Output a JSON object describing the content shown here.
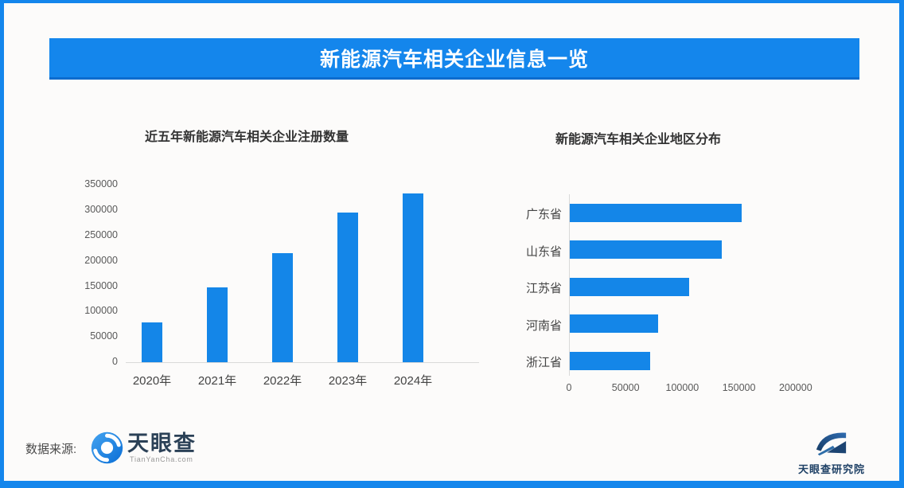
{
  "page": {
    "title": "新能源汽车相关企业信息一览",
    "accent_color": "#1486ec",
    "background_color": "#fcfbfa",
    "axis_line_color": "#d9d9d9"
  },
  "chart_data": [
    {
      "type": "bar",
      "title": "近五年新能源汽车相关企业注册数量",
      "categories": [
        "2020年",
        "2021年",
        "2022年",
        "2023年",
        "2024年"
      ],
      "values": [
        78000,
        148000,
        215000,
        296000,
        333000
      ],
      "yticks": [
        0,
        50000,
        100000,
        150000,
        200000,
        250000,
        300000,
        350000
      ],
      "ylim": [
        0,
        350000
      ],
      "xlabel": "",
      "ylabel": "",
      "bar_color": "#1486e8",
      "grid": false,
      "legend": "none"
    },
    {
      "type": "bar-horizontal",
      "title": "新能源汽车相关企业地区分布",
      "categories": [
        "广东省",
        "山东省",
        "江苏省",
        "河南省",
        "浙江省"
      ],
      "values": [
        152000,
        134000,
        105000,
        78000,
        71000
      ],
      "xticks": [
        0,
        50000,
        100000,
        150000,
        200000
      ],
      "xlim": [
        0,
        225000
      ],
      "xlabel": "",
      "ylabel": "",
      "bar_color": "#1486e8",
      "grid": false,
      "legend": "none"
    }
  ],
  "footer": {
    "source_label": "数据来源:",
    "tianyancha_name": "天眼查",
    "tianyancha_domain": "TianYanCha.com",
    "research_institute_name": "天眼查研究院"
  }
}
